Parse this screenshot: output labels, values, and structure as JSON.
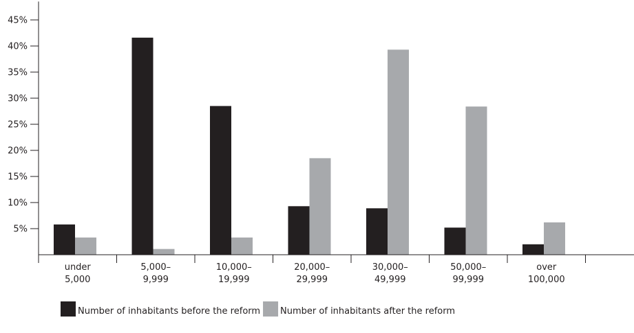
{
  "chart_data": {
    "type": "bar",
    "title": "",
    "xlabel": "",
    "ylabel": "",
    "ylim": [
      0,
      48
    ],
    "yticks": [
      5,
      10,
      15,
      20,
      25,
      30,
      35,
      40,
      45
    ],
    "ytick_labels": [
      "5%",
      "10%",
      "15%",
      "20%",
      "25%",
      "30%",
      "35%",
      "40%",
      "45%"
    ],
    "categories": [
      [
        "under",
        "5,000"
      ],
      [
        "5,000–",
        "9,999"
      ],
      [
        "10,000–",
        "19,999"
      ],
      [
        "20,000–",
        "29,999"
      ],
      [
        "30,000–",
        "49,999"
      ],
      [
        "50,000–",
        "99,999"
      ],
      [
        "over",
        "100,000"
      ]
    ],
    "series": [
      {
        "name": "Number of inhabitants before the reform",
        "color": "#231f20",
        "values": [
          5.8,
          41.6,
          28.5,
          9.3,
          8.9,
          5.2,
          2.0
        ]
      },
      {
        "name": "Number of inhabitants after the reform",
        "color": "#a7a9ac",
        "values": [
          3.3,
          1.1,
          3.3,
          18.5,
          39.3,
          28.4,
          6.2
        ]
      }
    ],
    "grid": false,
    "legend_position": "bottom"
  }
}
